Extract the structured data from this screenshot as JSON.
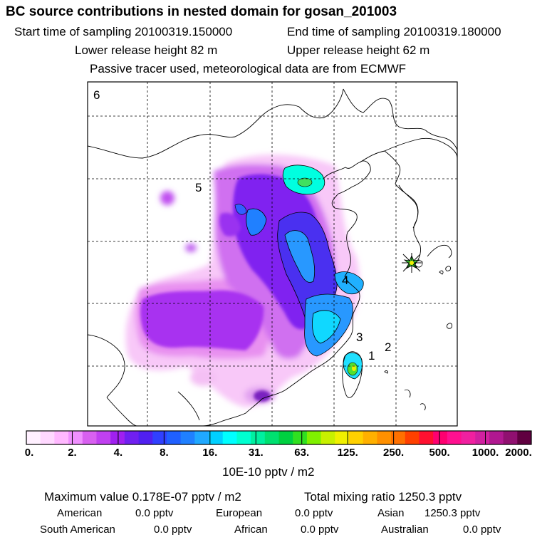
{
  "header": {
    "title": "BC  source contributions in nested domain for gosan_201003",
    "start_label": "Start time of sampling 20100319.150000",
    "end_label": "End time of sampling 20100319.180000",
    "lower_label": "Lower release height   82 m",
    "upper_label": "Upper release height   62 m",
    "tracer_note": "Passive tracer used, meteorological data are from ECMWF"
  },
  "map": {
    "region_numbers": [
      "1",
      "2",
      "3",
      "4",
      "5",
      "6"
    ],
    "receptor_marker": "gosan-receptor-star"
  },
  "colorbar": {
    "tick_labels": [
      "0.",
      "2.",
      "4.",
      "8.",
      "16.",
      "31.",
      "63.",
      "125.",
      "250.",
      "500.",
      "1000.",
      "2000."
    ],
    "unit_label": "10E-10 pptv / m2",
    "colors": [
      "#fff0ff",
      "#ffd8ff",
      "#ffb8ff",
      "#f090ff",
      "#d860f0",
      "#c040f0",
      "#a020f0",
      "#7020f0",
      "#5020f0",
      "#3040ff",
      "#2060ff",
      "#2080ff",
      "#20a8ff",
      "#00d0ff",
      "#00ffff",
      "#00ffd0",
      "#00f0a0",
      "#00e070",
      "#00d040",
      "#30e020",
      "#80f000",
      "#c8f000",
      "#f0f000",
      "#ffd000",
      "#ffb000",
      "#ff9000",
      "#ff7000",
      "#ff4000",
      "#ff1030",
      "#ff0070",
      "#ff1090",
      "#f020a0",
      "#d020a0",
      "#b01890",
      "#901070",
      "#600040"
    ]
  },
  "summary": {
    "max_value": "Maximum value  0.178E-07 pptv / m2",
    "total_mixing": "Total mixing ratio     1250.3 pptv",
    "american_label": "American",
    "american_value": "0.0 pptv",
    "european_label": "European",
    "european_value": "0.0 pptv",
    "asian_label": "Asian",
    "asian_value": "1250.3 pptv",
    "south_american_label": "South American",
    "south_american_value": "0.0 pptv",
    "african_label": "African",
    "african_value": "0.0 pptv",
    "australian_label": "Australian",
    "australian_value": "0.0 pptv"
  }
}
